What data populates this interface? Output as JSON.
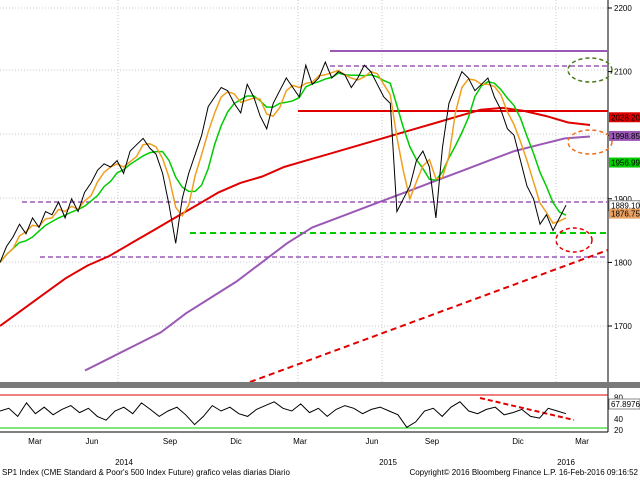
{
  "chart_data": {
    "type": "line",
    "main": {
      "y_ticks": [
        "2200",
        "2100",
        "2000",
        "1900",
        "1800",
        "1700"
      ],
      "ylim": [
        1600,
        2200
      ],
      "x_months": [
        "Mar",
        "Jun",
        "Sep",
        "Dic",
        "Mar",
        "Jun",
        "Sep",
        "Dic",
        "Mar"
      ],
      "x_years": [
        "2014",
        "2015",
        "2016"
      ],
      "price": [
        1800,
        1825,
        1840,
        1860,
        1845,
        1870,
        1855,
        1880,
        1875,
        1895,
        1870,
        1900,
        1880,
        1910,
        1925,
        1945,
        1955,
        1950,
        1960,
        1940,
        1975,
        1985,
        1995,
        1980,
        1970,
        1940,
        1890,
        1830,
        1900,
        1940,
        1970,
        2000,
        2045,
        2060,
        2075,
        2070,
        2050,
        2035,
        2080,
        2060,
        2030,
        2010,
        2050,
        2070,
        2090,
        2075,
        2060,
        2110,
        2080,
        2090,
        2115,
        2090,
        2100,
        2095,
        2075,
        2090,
        2110,
        2100,
        2080,
        2060,
        2050,
        1880,
        1900,
        1920,
        1960,
        1975,
        1950,
        1870,
        1980,
        2050,
        2075,
        2100,
        2090,
        2070,
        2080,
        2090,
        2060,
        2040,
        2010,
        2000,
        1960,
        1920,
        1900,
        1860,
        1875,
        1850,
        1870,
        1890
      ],
      "sma200": [
        1700,
        1725,
        1750,
        1775,
        1795,
        1810,
        1830,
        1850,
        1870,
        1890,
        1910,
        1925,
        1935,
        1950,
        1960,
        1970,
        1980,
        1990,
        2000,
        2010,
        2020,
        2030,
        2040,
        2043,
        2038,
        2030,
        2020,
        2016
      ],
      "sma100": [
        1630,
        1650,
        1670,
        1690,
        1720,
        1745,
        1770,
        1800,
        1830,
        1855,
        1870,
        1885,
        1900,
        1915,
        1930,
        1945,
        1960,
        1975,
        1985,
        1995,
        1998
      ],
      "levels": [
        {
          "label": "2028.20",
          "value": 2028.2,
          "color": "#e00000"
        },
        {
          "label": "1998.85",
          "value": 1998.85,
          "color": "#9b59b6"
        },
        {
          "label": "1956.99",
          "value": 1956.99,
          "color": "#00cc00"
        },
        {
          "label": "1889.10",
          "value": 1889.1,
          "color": "#ffffff"
        },
        {
          "label": "1876.75",
          "value": 1876.75,
          "color": "#e8a060"
        }
      ]
    },
    "indicator": {
      "y_ticks": [
        "80",
        "67.8976",
        "40",
        "20"
      ],
      "ylim": [
        20,
        90
      ],
      "values": [
        55,
        60,
        45,
        70,
        50,
        62,
        48,
        58,
        65,
        52,
        60,
        45,
        38,
        55,
        62,
        50,
        70,
        58,
        45,
        55,
        62,
        48,
        30,
        45,
        65,
        55,
        62,
        50,
        45,
        58,
        65,
        72,
        60,
        55,
        68,
        52,
        60,
        45,
        58,
        65,
        60,
        50,
        58,
        62,
        55,
        48,
        25,
        35,
        55,
        60,
        45,
        62,
        72,
        55,
        50,
        58,
        62,
        48,
        52,
        58,
        45,
        42,
        60,
        55,
        50
      ]
    }
  },
  "footer": {
    "left": "SP1 Index (CME Standard & Poor's 500 Index Future) grafico velas diarias  Diario",
    "right": "Copyright© 2016 Bloomberg Finance L.P.    16-Feb-2016 09:16:52"
  },
  "colors": {
    "price": "#000000",
    "sma50": "#00cc00",
    "sma20": "#f0a020",
    "sma200": "#e00000",
    "sma100": "#9b59b6",
    "trend": "#e00000",
    "support": "#00cc00",
    "resistance": "#9b59b6"
  }
}
